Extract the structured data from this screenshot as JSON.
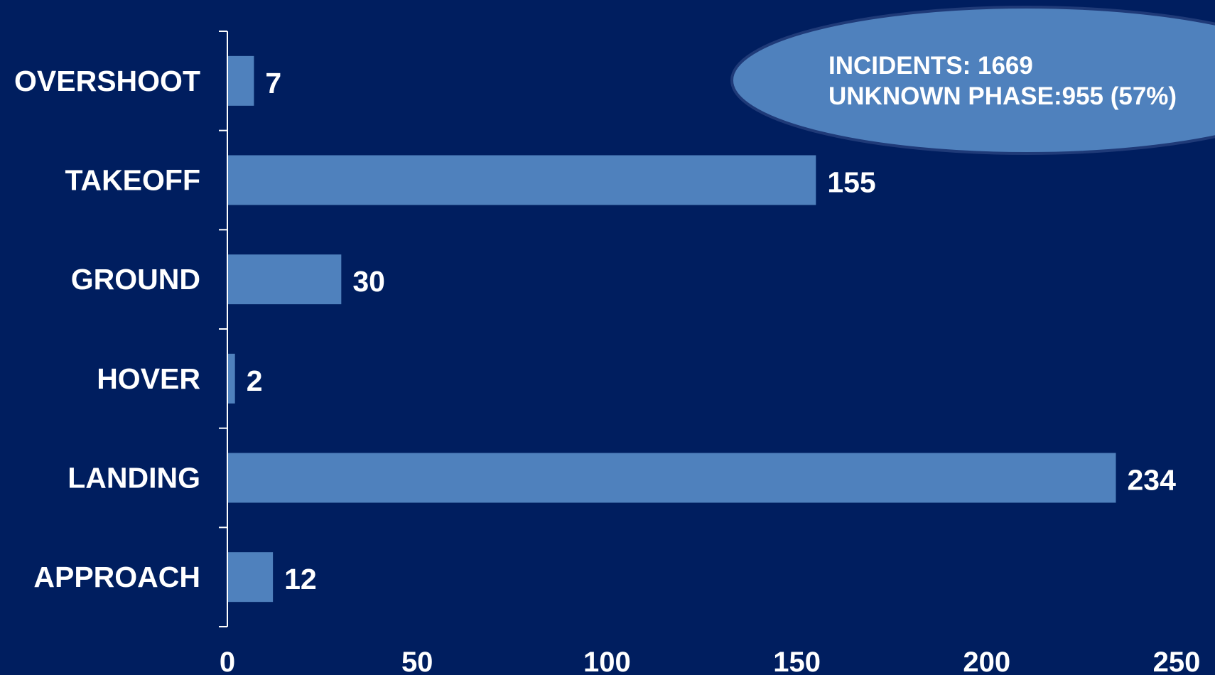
{
  "chart_data": {
    "type": "bar",
    "orientation": "horizontal",
    "categories": [
      "OVERSHOOT",
      "TAKEOFF",
      "GROUND",
      "HOVER",
      "LANDING",
      "APPROACH"
    ],
    "values": [
      7,
      155,
      30,
      2,
      234,
      12
    ],
    "data_labels": [
      "7",
      "155",
      "30",
      "2",
      "234",
      "12"
    ],
    "title": "",
    "xlabel": "",
    "ylabel": "",
    "xlim": [
      0,
      250
    ],
    "x_ticks": [
      0,
      50,
      100,
      150,
      200,
      250
    ],
    "x_tick_labels": [
      "0",
      "50",
      "100",
      "150",
      "200",
      "250"
    ],
    "grid": false,
    "legend": "none",
    "annotation": {
      "lines": [
        "INCIDENTS: 1669",
        "UNKNOWN PHASE:955 (57%)"
      ]
    }
  },
  "colors": {
    "background": "#001E5F",
    "bar": "#4F81BD",
    "annotation_fill": "#4F81BD",
    "annotation_stroke": "#1F3A78",
    "axis": "#FFFFFF",
    "text": "#FFFFFF"
  }
}
